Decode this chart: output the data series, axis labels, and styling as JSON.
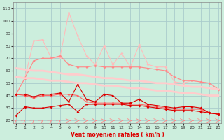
{
  "x": [
    0,
    1,
    2,
    3,
    4,
    5,
    6,
    7,
    8,
    9,
    10,
    11,
    12,
    13,
    14,
    15,
    16,
    17,
    18,
    19,
    20,
    21,
    22,
    23
  ],
  "line_spiky_light": [
    41,
    54,
    84,
    85,
    70,
    71,
    107,
    88,
    72,
    65,
    80,
    65,
    74,
    63,
    81,
    65,
    63,
    63,
    51,
    50,
    52,
    51,
    50,
    45
  ],
  "line_smooth_light": [
    41,
    54,
    68,
    70,
    70,
    72,
    65,
    63,
    63,
    64,
    63,
    63,
    63,
    63,
    63,
    62,
    61,
    60,
    55,
    52,
    52,
    51,
    50,
    45
  ],
  "line_trend1": [
    62,
    61,
    60,
    60,
    59,
    58,
    57,
    57,
    56,
    55,
    54,
    54,
    53,
    52,
    52,
    51,
    50,
    50,
    49,
    48,
    47,
    47,
    46,
    45
  ],
  "line_trend2": [
    55,
    54,
    54,
    53,
    52,
    52,
    51,
    50,
    50,
    49,
    48,
    48,
    47,
    46,
    46,
    45,
    44,
    44,
    43,
    42,
    42,
    41,
    40,
    40
  ],
  "line_mid1": [
    41,
    40,
    38,
    40,
    40,
    41,
    41,
    40,
    35,
    34,
    34,
    34,
    34,
    33,
    33,
    32,
    31,
    30,
    29,
    29,
    29,
    29,
    26,
    25
  ],
  "line_dark1": [
    41,
    41,
    39,
    41,
    41,
    42,
    35,
    49,
    37,
    35,
    41,
    40,
    34,
    34,
    37,
    33,
    32,
    31,
    30,
    31,
    31,
    30,
    26,
    25
  ],
  "line_dark2": [
    24,
    31,
    30,
    30,
    31,
    32,
    33,
    27,
    33,
    33,
    33,
    33,
    33,
    32,
    32,
    31,
    30,
    29,
    28,
    28,
    28,
    27,
    26,
    25
  ],
  "xlabel": "Vent moyen/en rafales ( km/h )",
  "bg_color": "#cceedd",
  "grid_color": "#aacccc",
  "c_light": "#ffbbbb",
  "c_medium": "#ff8888",
  "c_dark": "#dd0000",
  "yticks": [
    20,
    30,
    40,
    50,
    60,
    70,
    80,
    90,
    100,
    110
  ],
  "xticks": [
    0,
    1,
    2,
    3,
    4,
    5,
    6,
    7,
    8,
    9,
    10,
    11,
    12,
    13,
    14,
    15,
    16,
    17,
    18,
    19,
    20,
    21,
    22,
    23
  ],
  "ylim": [
    18,
    115
  ],
  "xlim": [
    -0.3,
    23.3
  ]
}
